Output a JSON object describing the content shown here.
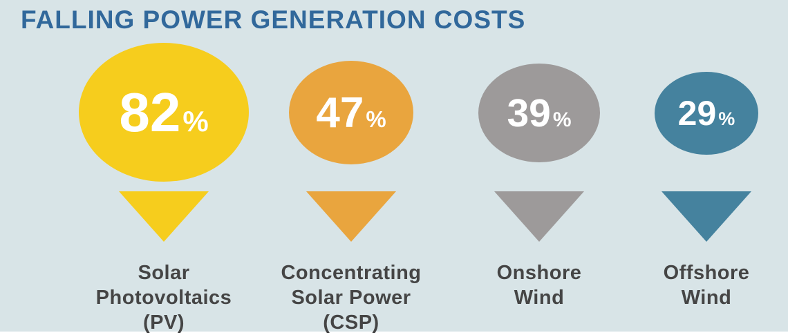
{
  "title": "FALLING POWER GENERATION COSTS",
  "colors": {
    "background": "#D8E4E7",
    "title_text": "#31689B",
    "label_text": "#454545",
    "percent_text": "#FFFFFF"
  },
  "chart_data": {
    "type": "pictorial-proportional-circles",
    "title": "FALLING POWER GENERATION COSTS",
    "unit": "%",
    "legend_position": "none",
    "items": [
      {
        "value": 82,
        "unit": "%",
        "label": "Solar Photovoltaics (PV)",
        "label_lines": [
          "Solar",
          "Photovoltaics",
          "(PV)"
        ],
        "color": "#F6CD1D"
      },
      {
        "value": 47,
        "unit": "%",
        "label": "Concentrating Solar Power (CSP)",
        "label_lines": [
          "Concentrating",
          "Solar Power",
          "(CSP)"
        ],
        "color": "#E9A53E"
      },
      {
        "value": 39,
        "unit": "%",
        "label": "Onshore Wind",
        "label_lines": [
          "Onshore",
          "Wind"
        ],
        "color": "#9D9A9A"
      },
      {
        "value": 29,
        "unit": "%",
        "label": "Offshore Wind",
        "label_lines": [
          "Offshore",
          "Wind"
        ],
        "color": "#45829E"
      }
    ]
  }
}
